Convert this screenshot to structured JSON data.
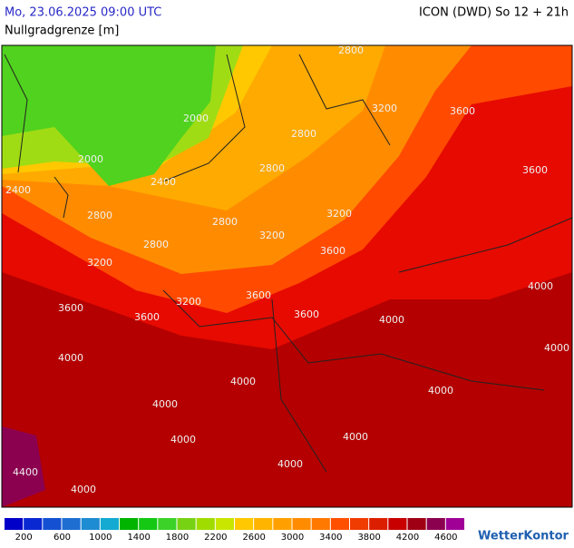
{
  "header": {
    "title": "Mo, 23.06.2025 09:00 UTC",
    "model": "ICON (DWD) So 12 + 21h",
    "parameter": "Nullgradgrenze [m]"
  },
  "map": {
    "contour_labels": [
      "2000",
      "2000",
      "2400",
      "2400",
      "2800",
      "2800",
      "3200",
      "3600",
      "3600",
      "3200",
      "2800",
      "3200",
      "2800",
      "2800",
      "3200",
      "3200",
      "3600",
      "3600",
      "3600",
      "3600",
      "3600",
      "4000",
      "4000",
      "4000",
      "4000",
      "4000",
      "4000",
      "4000",
      "4000",
      "4000",
      "4000",
      "4000",
      "4400",
      "2800"
    ]
  },
  "legend": {
    "labels": [
      "200",
      "600",
      "1000",
      "1400",
      "1800",
      "2200",
      "2600",
      "3000",
      "3400",
      "3800",
      "4200",
      "4600"
    ],
    "colors": [
      "#0000c8",
      "#0a28d2",
      "#1450d2",
      "#1e6ed2",
      "#1e8cd2",
      "#14aad2",
      "#00b400",
      "#14c814",
      "#3cd228",
      "#78d214",
      "#a0dc00",
      "#c8e600",
      "#ffc800",
      "#ffb400",
      "#ffa000",
      "#ff8c00",
      "#ff7800",
      "#ff5000",
      "#f03c00",
      "#dc1e00",
      "#c80000",
      "#a00014",
      "#8c0050",
      "#a00096"
    ]
  },
  "brand": "WetterKontor"
}
